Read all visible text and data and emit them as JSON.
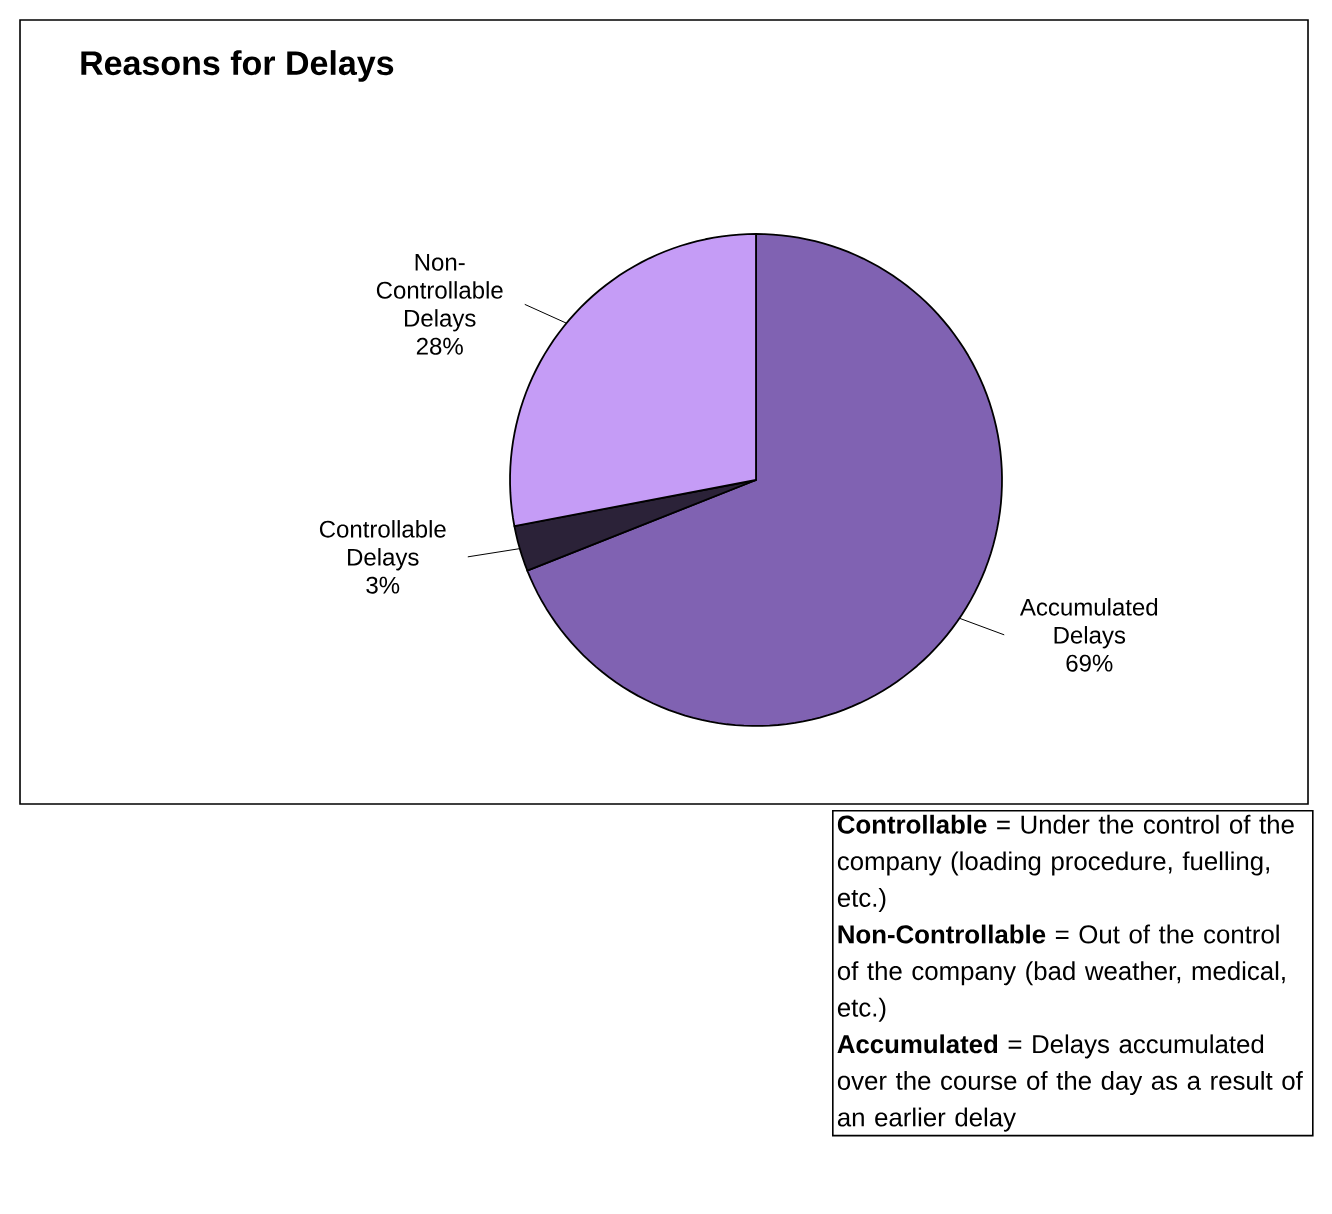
{
  "chart_data": {
    "type": "pie",
    "title": "Reasons for Delays",
    "categories": [
      "Accumulated Delays",
      "Controllable Delays",
      "Non-Controllable Delays"
    ],
    "values": [
      69,
      3,
      28
    ],
    "value_labels": [
      "69%",
      "3%",
      "28%"
    ],
    "colors": [
      "#8062b2",
      "#2b2238",
      "#c59cf6"
    ],
    "annotations": [
      "**Controllable** = Under the control of the company (loading procedure, fuelling, etc.)",
      "**Non-Controllable** = Out of the control of the company (bad weather, medical, etc.)",
      "**Accumulated** = Delays accumulated over the course of the day as a result of an earlier delay"
    ]
  }
}
